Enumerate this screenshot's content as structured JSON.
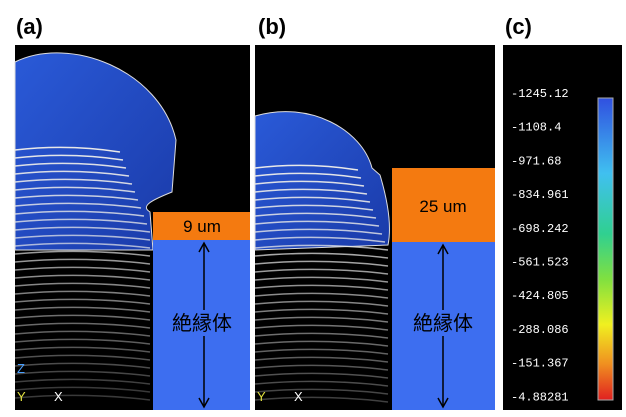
{
  "panels": [
    {
      "label": "(a)",
      "thickness": "9 um",
      "insulator": "絶縁体"
    },
    {
      "label": "(b)",
      "thickness": "25 um",
      "insulator": "絶縁体"
    },
    {
      "label": "(c)"
    }
  ],
  "axes_labels": {
    "z": "Z",
    "y": "Y",
    "x": "X"
  },
  "colorbar": {
    "labels": [
      "-1245.12",
      "-1108.4",
      "-971.68",
      "-834.961",
      "-698.242",
      "-561.523",
      "-424.805",
      "-288.086",
      "-151.367",
      "-4.88281"
    ]
  }
}
